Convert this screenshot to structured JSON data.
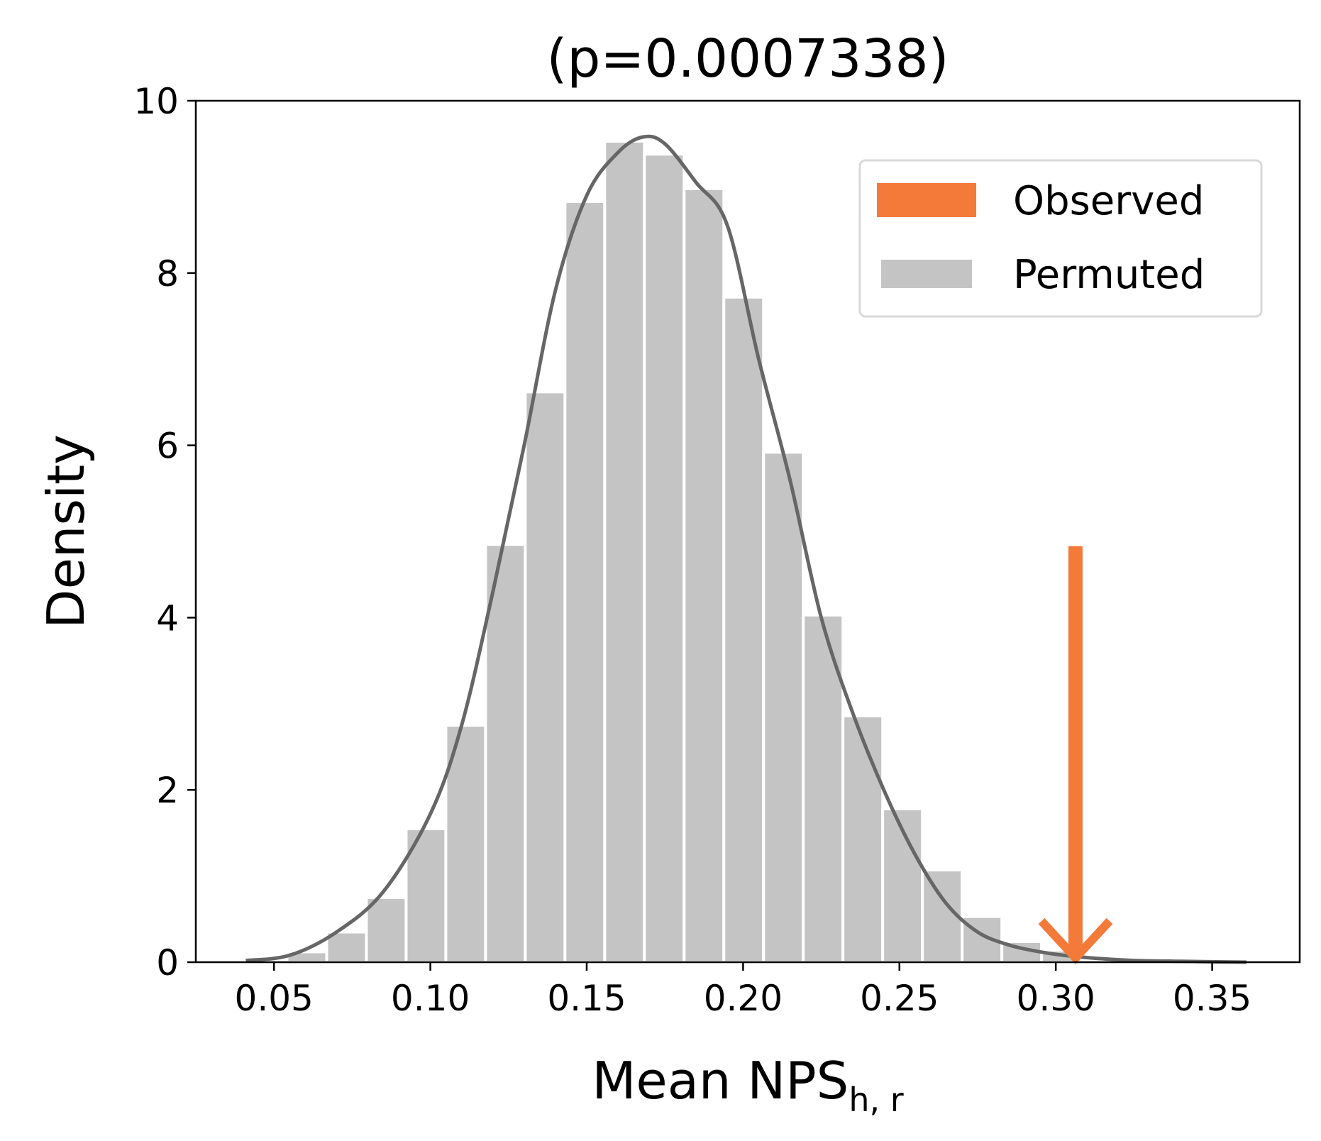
{
  "chart_data": {
    "type": "bar",
    "title": "(p=0.0007338)",
    "xlabel": "Mean NPS",
    "xlabel_subscript": "h, r",
    "ylabel": "Density",
    "xlim": [
      0.025,
      0.378
    ],
    "ylim": [
      0,
      10
    ],
    "xticks": [
      0.05,
      0.1,
      0.15,
      0.2,
      0.25,
      0.3,
      0.35
    ],
    "xtick_labels": [
      "0.05",
      "0.10",
      "0.15",
      "0.20",
      "0.25",
      "0.30",
      "0.35"
    ],
    "yticks": [
      0,
      2,
      4,
      6,
      8,
      10
    ],
    "ytick_labels": [
      "0",
      "2",
      "4",
      "6",
      "8",
      "10"
    ],
    "grid": false,
    "legend_position": "top-right",
    "colors": {
      "permuted": "#c4c4c4",
      "kde": "#666666",
      "observed": "#f47a3a"
    },
    "histogram": {
      "name": "Permuted",
      "bin_width": 0.0127,
      "bin_centers": [
        0.0605,
        0.0732,
        0.0859,
        0.0986,
        0.1113,
        0.124,
        0.1367,
        0.1494,
        0.1621,
        0.1748,
        0.1875,
        0.2002,
        0.2129,
        0.2256,
        0.2383,
        0.251,
        0.2637,
        0.2764,
        0.2891,
        0.3018
      ],
      "values": [
        0.12,
        0.35,
        0.75,
        1.55,
        2.75,
        4.85,
        6.62,
        8.83,
        9.53,
        9.38,
        8.98,
        7.72,
        5.92,
        4.03,
        2.86,
        1.78,
        1.07,
        0.53,
        0.24,
        0.14
      ]
    },
    "kde": {
      "x": [
        0.041,
        0.055,
        0.07,
        0.085,
        0.1,
        0.11,
        0.12,
        0.13,
        0.14,
        0.15,
        0.16,
        0.168,
        0.175,
        0.185,
        0.195,
        0.205,
        0.215,
        0.225,
        0.235,
        0.245,
        0.255,
        0.265,
        0.275,
        0.285,
        0.295,
        0.305,
        0.315,
        0.325,
        0.34,
        0.361
      ],
      "y": [
        0.02,
        0.08,
        0.35,
        0.82,
        1.72,
        2.75,
        4.3,
        6.0,
        7.8,
        8.9,
        9.4,
        9.58,
        9.5,
        9.05,
        8.55,
        7.0,
        5.6,
        4.0,
        2.9,
        2.0,
        1.25,
        0.68,
        0.35,
        0.2,
        0.12,
        0.07,
        0.04,
        0.02,
        0.01,
        0.0
      ]
    },
    "observed": {
      "name": "Observed",
      "x": 0.3063,
      "arrow_top": 4.83
    },
    "legend": [
      {
        "label": "Observed",
        "color": "#f47a3a"
      },
      {
        "label": "Permuted",
        "color": "#c4c4c4"
      }
    ]
  }
}
